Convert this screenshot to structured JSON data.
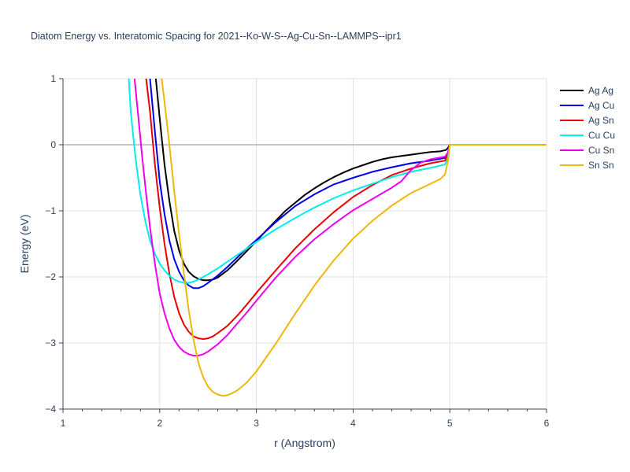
{
  "chart_data": {
    "type": "line",
    "title": "Diatom Energy vs. Interatomic Spacing for 2021--Ko-W-S--Ag-Cu-Sn--LAMMPS--ipr1",
    "xlabel": "r (Angstrom)",
    "ylabel": "Energy (eV)",
    "xlim": [
      1,
      6
    ],
    "ylim": [
      -4,
      1
    ],
    "xticks": [
      1,
      2,
      3,
      4,
      5,
      6
    ],
    "xtick_labels": [
      "1",
      "2",
      "3",
      "4",
      "5",
      "6"
    ],
    "yticks": [
      1,
      0,
      -1,
      -2,
      -3,
      -4
    ],
    "ytick_labels": [
      "1",
      "0",
      "−1",
      "−2",
      "−3",
      "−4"
    ],
    "grid": true,
    "legend_position": "top-right",
    "series": [
      {
        "name": "Ag Ag",
        "color": "#000000",
        "x": [
          1.96,
          2.0,
          2.05,
          2.1,
          2.15,
          2.2,
          2.25,
          2.3,
          2.35,
          2.4,
          2.45,
          2.5,
          2.55,
          2.6,
          2.7,
          2.8,
          2.9,
          3.0,
          3.1,
          3.2,
          3.3,
          3.4,
          3.5,
          3.6,
          3.7,
          3.8,
          3.9,
          4.0,
          4.1,
          4.2,
          4.3,
          4.4,
          4.5,
          4.6,
          4.7,
          4.8,
          4.9,
          4.96,
          4.98,
          5.0,
          5.02
        ],
        "y": [
          1.0,
          0.4,
          -0.3,
          -0.85,
          -1.3,
          -1.6,
          -1.8,
          -1.92,
          -1.99,
          -2.03,
          -2.05,
          -2.05,
          -2.04,
          -2.01,
          -1.9,
          -1.76,
          -1.61,
          -1.46,
          -1.3,
          -1.15,
          -1.0,
          -0.88,
          -0.76,
          -0.66,
          -0.57,
          -0.49,
          -0.42,
          -0.36,
          -0.31,
          -0.26,
          -0.22,
          -0.19,
          -0.17,
          -0.15,
          -0.13,
          -0.11,
          -0.1,
          -0.08,
          -0.05,
          0.0,
          0.0
        ]
      },
      {
        "name": "Ag Cu",
        "color": "#0000ee",
        "x": [
          1.9,
          1.95,
          2.0,
          2.05,
          2.1,
          2.15,
          2.2,
          2.25,
          2.3,
          2.35,
          2.4,
          2.45,
          2.5,
          2.6,
          2.7,
          2.8,
          2.9,
          3.0,
          3.2,
          3.4,
          3.6,
          3.8,
          4.0,
          4.2,
          4.4,
          4.6,
          4.8,
          4.95,
          4.98,
          5.0,
          5.02
        ],
        "y": [
          1.0,
          0.2,
          -0.55,
          -1.05,
          -1.45,
          -1.73,
          -1.92,
          -2.05,
          -2.13,
          -2.17,
          -2.17,
          -2.14,
          -2.09,
          -1.98,
          -1.85,
          -1.71,
          -1.57,
          -1.44,
          -1.17,
          -0.93,
          -0.75,
          -0.6,
          -0.5,
          -0.41,
          -0.34,
          -0.28,
          -0.24,
          -0.2,
          -0.15,
          0.0,
          0.0
        ]
      },
      {
        "name": "Ag Sn",
        "color": "#ee0000",
        "x": [
          1.86,
          1.9,
          1.95,
          2.0,
          2.05,
          2.1,
          2.15,
          2.2,
          2.25,
          2.3,
          2.35,
          2.4,
          2.45,
          2.5,
          2.55,
          2.6,
          2.7,
          2.8,
          2.9,
          3.0,
          3.2,
          3.4,
          3.6,
          3.8,
          4.0,
          4.2,
          4.4,
          4.6,
          4.8,
          4.95,
          4.98,
          5.0,
          5.02
        ],
        "y": [
          1.0,
          0.5,
          -0.3,
          -0.95,
          -1.5,
          -1.95,
          -2.3,
          -2.55,
          -2.72,
          -2.83,
          -2.9,
          -2.93,
          -2.94,
          -2.93,
          -2.9,
          -2.85,
          -2.74,
          -2.59,
          -2.42,
          -2.24,
          -1.9,
          -1.57,
          -1.28,
          -1.02,
          -0.79,
          -0.61,
          -0.46,
          -0.36,
          -0.28,
          -0.24,
          -0.15,
          0.0,
          0.0
        ]
      },
      {
        "name": "Cu Cu",
        "color": "#00eeee",
        "x": [
          1.68,
          1.7,
          1.75,
          1.8,
          1.85,
          1.9,
          1.95,
          2.0,
          2.05,
          2.1,
          2.15,
          2.2,
          2.25,
          2.3,
          2.35,
          2.4,
          2.5,
          2.6,
          2.7,
          2.8,
          2.9,
          3.0,
          3.2,
          3.4,
          3.6,
          3.8,
          4.0,
          4.2,
          4.4,
          4.6,
          4.8,
          4.95,
          4.98,
          5.0,
          5.02
        ],
        "y": [
          1.0,
          0.5,
          -0.2,
          -0.75,
          -1.15,
          -1.45,
          -1.65,
          -1.8,
          -1.9,
          -1.98,
          -2.04,
          -2.07,
          -2.09,
          -2.09,
          -2.07,
          -2.04,
          -1.96,
          -1.87,
          -1.77,
          -1.67,
          -1.57,
          -1.47,
          -1.28,
          -1.11,
          -0.95,
          -0.81,
          -0.69,
          -0.59,
          -0.49,
          -0.41,
          -0.35,
          -0.3,
          -0.2,
          0.0,
          0.0
        ]
      },
      {
        "name": "Cu Sn",
        "color": "#ee00ee",
        "x": [
          1.74,
          1.78,
          1.82,
          1.86,
          1.9,
          1.95,
          2.0,
          2.05,
          2.1,
          2.15,
          2.2,
          2.25,
          2.3,
          2.35,
          2.4,
          2.45,
          2.5,
          2.6,
          2.7,
          2.8,
          2.9,
          3.0,
          3.2,
          3.4,
          3.6,
          3.8,
          4.0,
          4.2,
          4.4,
          4.5,
          4.6,
          4.7,
          4.8,
          4.95,
          4.98,
          5.0,
          5.02
        ],
        "y": [
          1.0,
          0.4,
          -0.2,
          -0.75,
          -1.25,
          -1.8,
          -2.25,
          -2.55,
          -2.78,
          -2.95,
          -3.06,
          -3.13,
          -3.17,
          -3.19,
          -3.19,
          -3.17,
          -3.13,
          -3.02,
          -2.88,
          -2.71,
          -2.54,
          -2.36,
          -2.01,
          -1.7,
          -1.43,
          -1.2,
          -0.99,
          -0.82,
          -0.65,
          -0.55,
          -0.38,
          -0.27,
          -0.22,
          -0.18,
          -0.12,
          0.0,
          0.0
        ]
      },
      {
        "name": "Sn Sn",
        "color": "#eeb808",
        "x": [
          2.02,
          2.05,
          2.1,
          2.15,
          2.2,
          2.25,
          2.3,
          2.35,
          2.4,
          2.45,
          2.5,
          2.55,
          2.6,
          2.65,
          2.7,
          2.75,
          2.8,
          2.9,
          3.0,
          3.1,
          3.2,
          3.4,
          3.6,
          3.8,
          4.0,
          4.2,
          4.4,
          4.6,
          4.8,
          4.9,
          4.95,
          4.98,
          5.0,
          5.02,
          6.0
        ],
        "y": [
          1.0,
          0.65,
          0.0,
          -0.7,
          -1.35,
          -1.95,
          -2.5,
          -2.95,
          -3.3,
          -3.52,
          -3.66,
          -3.74,
          -3.78,
          -3.8,
          -3.79,
          -3.76,
          -3.72,
          -3.6,
          -3.43,
          -3.22,
          -3.01,
          -2.56,
          -2.13,
          -1.75,
          -1.42,
          -1.15,
          -0.92,
          -0.73,
          -0.59,
          -0.52,
          -0.45,
          -0.25,
          0.0,
          0.0,
          0.0
        ]
      }
    ]
  }
}
